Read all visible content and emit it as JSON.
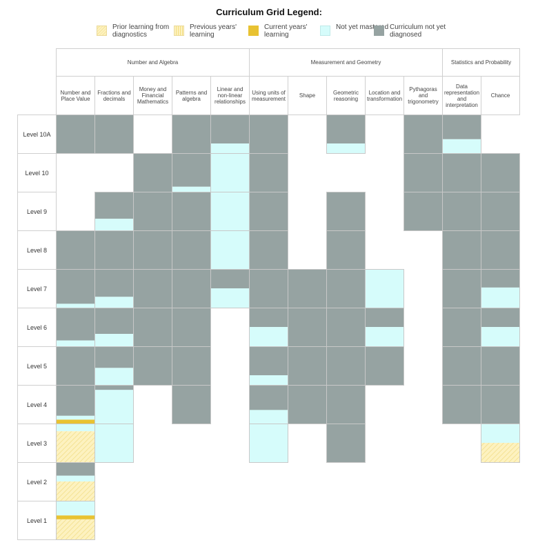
{
  "legend": {
    "title": "Curriculum Grid Legend:",
    "items": [
      {
        "key": "prior",
        "label": "Prior learning from diagnostics",
        "color": "#fdf2c0",
        "pattern": "hatch"
      },
      {
        "key": "previous",
        "label": "Previous years' learning",
        "color": "#fdf2c0",
        "pattern": "stripe"
      },
      {
        "key": "current",
        "label": "Current years' learning",
        "color": "#e8c232",
        "pattern": "solid"
      },
      {
        "key": "notmastered",
        "label": "Not yet mastered",
        "color": "#d6fcfb",
        "pattern": "solid"
      },
      {
        "key": "notdiagnosed",
        "label": "Curriculum not yet diagnosed",
        "color": "#96a3a2",
        "pattern": "solid"
      }
    ]
  },
  "chart_data": {
    "type": "heatmap",
    "strands": [
      {
        "name": "Number and Algebra",
        "span": 5
      },
      {
        "name": "Measurement and Geometry",
        "span": 5
      },
      {
        "name": "Statistics and Probability",
        "span": 2
      }
    ],
    "columns": [
      "Number and Place Value",
      "Fractions and decimals",
      "Money and Financial Mathematics",
      "Patterns and algebra",
      "Linear and non-linear relationships",
      "Using units of measurement",
      "Shape",
      "Geometric reasoning",
      "Location and transformation",
      "Pythagoras and trigonometry",
      "Data representation and interpretation",
      "Chance"
    ],
    "rows": [
      "Level 10A",
      "Level 10",
      "Level 9",
      "Level 8",
      "Level 7",
      "Level 6",
      "Level 5",
      "Level 4",
      "Level 3",
      "Level 2",
      "Level 1"
    ],
    "cell_note": "Each cell lists its fill bands from top to bottom as [category, fraction of cell height]",
    "cells": [
      [
        [
          [
            "notdiagnosed",
            1
          ]
        ],
        [
          [
            "notdiagnosed",
            1
          ]
        ],
        [],
        [
          [
            "notdiagnosed",
            1
          ]
        ],
        [
          [
            "notdiagnosed",
            0.75
          ],
          [
            "notmastered",
            0.25
          ]
        ],
        [
          [
            "notdiagnosed",
            1
          ]
        ],
        [],
        [
          [
            "notdiagnosed",
            0.75
          ],
          [
            "notmastered",
            0.25
          ]
        ],
        [],
        [
          [
            "notdiagnosed",
            1
          ]
        ],
        [
          [
            "notdiagnosed",
            0.64
          ],
          [
            "notmastered",
            0.36
          ]
        ],
        []
      ],
      [
        [],
        [],
        [
          [
            "notdiagnosed",
            1
          ]
        ],
        [
          [
            "notdiagnosed",
            0.87
          ],
          [
            "notmastered",
            0.13
          ]
        ],
        [
          [
            "notmastered",
            1
          ]
        ],
        [
          [
            "notdiagnosed",
            1
          ]
        ],
        [],
        [],
        [],
        [
          [
            "notdiagnosed",
            1
          ]
        ],
        [
          [
            "notdiagnosed",
            1
          ]
        ],
        [
          [
            "notdiagnosed",
            1
          ]
        ]
      ],
      [
        [],
        [
          [
            "notdiagnosed",
            0.7
          ],
          [
            "notmastered",
            0.3
          ]
        ],
        [
          [
            "notdiagnosed",
            1
          ]
        ],
        [
          [
            "notdiagnosed",
            1
          ]
        ],
        [
          [
            "notmastered",
            1
          ]
        ],
        [
          [
            "notdiagnosed",
            1
          ]
        ],
        [],
        [
          [
            "notdiagnosed",
            1
          ]
        ],
        [],
        [
          [
            "notdiagnosed",
            1
          ]
        ],
        [
          [
            "notdiagnosed",
            1
          ]
        ],
        [
          [
            "notdiagnosed",
            1
          ]
        ]
      ],
      [
        [
          [
            "notdiagnosed",
            1
          ]
        ],
        [
          [
            "notdiagnosed",
            1
          ]
        ],
        [
          [
            "notdiagnosed",
            1
          ]
        ],
        [
          [
            "notdiagnosed",
            1
          ]
        ],
        [
          [
            "notmastered",
            1
          ]
        ],
        [
          [
            "notdiagnosed",
            1
          ]
        ],
        [],
        [
          [
            "notdiagnosed",
            1
          ]
        ],
        [],
        [],
        [
          [
            "notdiagnosed",
            1
          ]
        ],
        [
          [
            "notdiagnosed",
            1
          ]
        ]
      ],
      [
        [
          [
            "notdiagnosed",
            0.9
          ],
          [
            "notmastered",
            0.1
          ]
        ],
        [
          [
            "notdiagnosed",
            0.72
          ],
          [
            "notmastered",
            0.28
          ]
        ],
        [
          [
            "notdiagnosed",
            1
          ]
        ],
        [
          [
            "notdiagnosed",
            1
          ]
        ],
        [
          [
            "notdiagnosed",
            0.5
          ],
          [
            "notmastered",
            0.5
          ]
        ],
        [
          [
            "notdiagnosed",
            1
          ]
        ],
        [
          [
            "notdiagnosed",
            1
          ]
        ],
        [
          [
            "notdiagnosed",
            1
          ]
        ],
        [
          [
            "notmastered",
            1
          ]
        ],
        [],
        [
          [
            "notdiagnosed",
            1
          ]
        ],
        [
          [
            "notdiagnosed",
            0.48
          ],
          [
            "notmastered",
            0.52
          ]
        ]
      ],
      [
        [
          [
            "notdiagnosed",
            0.85
          ],
          [
            "notmastered",
            0.15
          ]
        ],
        [
          [
            "notdiagnosed",
            0.68
          ],
          [
            "notmastered",
            0.32
          ]
        ],
        [
          [
            "notdiagnosed",
            1
          ]
        ],
        [
          [
            "notdiagnosed",
            1
          ]
        ],
        [],
        [
          [
            "notdiagnosed",
            0.5
          ],
          [
            "notmastered",
            0.5
          ]
        ],
        [
          [
            "notdiagnosed",
            1
          ]
        ],
        [
          [
            "notdiagnosed",
            1
          ]
        ],
        [
          [
            "notdiagnosed",
            0.5
          ],
          [
            "notmastered",
            0.5
          ]
        ],
        [],
        [
          [
            "notdiagnosed",
            1
          ]
        ],
        [
          [
            "notdiagnosed",
            0.5
          ],
          [
            "notmastered",
            0.5
          ]
        ]
      ],
      [
        [
          [
            "notdiagnosed",
            1
          ]
        ],
        [
          [
            "notdiagnosed",
            0.56
          ],
          [
            "notmastered",
            0.44
          ]
        ],
        [
          [
            "notdiagnosed",
            1
          ]
        ],
        [
          [
            "notdiagnosed",
            1
          ]
        ],
        [],
        [
          [
            "notdiagnosed",
            0.75
          ],
          [
            "notmastered",
            0.25
          ]
        ],
        [
          [
            "notdiagnosed",
            1
          ]
        ],
        [
          [
            "notdiagnosed",
            1
          ]
        ],
        [
          [
            "notdiagnosed",
            1
          ]
        ],
        [],
        [
          [
            "notdiagnosed",
            1
          ]
        ],
        [
          [
            "notdiagnosed",
            1
          ]
        ]
      ],
      [
        [
          [
            "notdiagnosed",
            0.8
          ],
          [
            "notmastered",
            0.1
          ],
          [
            "current",
            0.1
          ]
        ],
        [
          [
            "notdiagnosed",
            0.13
          ],
          [
            "notmastered",
            0.87
          ]
        ],
        [],
        [
          [
            "notdiagnosed",
            1
          ]
        ],
        [],
        [
          [
            "notdiagnosed",
            0.65
          ],
          [
            "notmastered",
            0.35
          ]
        ],
        [
          [
            "notdiagnosed",
            1
          ]
        ],
        [
          [
            "notdiagnosed",
            1
          ]
        ],
        [],
        [],
        [
          [
            "notdiagnosed",
            1
          ]
        ],
        [
          [
            "notdiagnosed",
            1
          ]
        ]
      ],
      [
        [
          [
            "notmastered",
            0.2
          ],
          [
            "prior",
            0.8
          ]
        ],
        [
          [
            "notmastered",
            1
          ]
        ],
        [],
        [],
        [],
        [
          [
            "notmastered",
            1
          ]
        ],
        [],
        [
          [
            "notdiagnosed",
            1
          ]
        ],
        [],
        [],
        [],
        [
          [
            "notmastered",
            0.5
          ],
          [
            "prior",
            0.5
          ]
        ]
      ],
      [
        [
          [
            "notdiagnosed",
            0.35
          ],
          [
            "notmastered",
            0.15
          ],
          [
            "prior",
            0.5
          ]
        ],
        [],
        [],
        [],
        [],
        [],
        [],
        [],
        [],
        [],
        [],
        []
      ],
      [
        [
          [
            "notmastered",
            0.38
          ],
          [
            "current",
            0.1
          ],
          [
            "prior",
            0.52
          ]
        ],
        [],
        [],
        [],
        [],
        [],
        [],
        [],
        [],
        [],
        [],
        []
      ]
    ]
  }
}
